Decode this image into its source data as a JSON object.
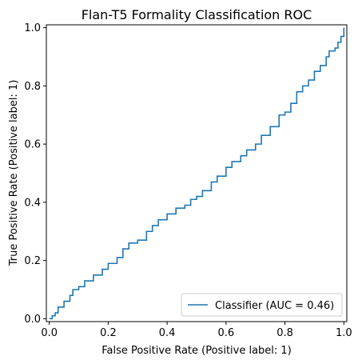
{
  "chart_data": {
    "type": "line",
    "title": "Flan-T5 Formality Classification ROC",
    "xlabel": "False Positive Rate (Positive label: 1)",
    "ylabel": "True Positive Rate (Positive label: 1)",
    "xlim": [
      -0.01,
      1.01
    ],
    "ylim": [
      -0.01,
      1.01
    ],
    "xticks": [
      0.0,
      0.2,
      0.4,
      0.6,
      0.8,
      1.0
    ],
    "yticks": [
      0.0,
      0.2,
      0.4,
      0.6,
      0.8,
      1.0
    ],
    "xtick_labels": [
      "0.0",
      "0.2",
      "0.4",
      "0.6",
      "0.8",
      "1.0"
    ],
    "ytick_labels": [
      "0.0",
      "0.2",
      "0.4",
      "0.6",
      "0.8",
      "1.0"
    ],
    "grid": false,
    "legend_position": "lower-right",
    "series": [
      {
        "name": "Classifier (AUC = 0.46)",
        "color": "#1f77b4",
        "x": [
          0.0,
          0.01,
          0.02,
          0.03,
          0.05,
          0.07,
          0.08,
          0.1,
          0.12,
          0.15,
          0.18,
          0.2,
          0.23,
          0.25,
          0.27,
          0.3,
          0.33,
          0.35,
          0.37,
          0.4,
          0.43,
          0.46,
          0.48,
          0.5,
          0.52,
          0.55,
          0.57,
          0.6,
          0.62,
          0.65,
          0.67,
          0.7,
          0.72,
          0.75,
          0.78,
          0.8,
          0.82,
          0.84,
          0.86,
          0.88,
          0.9,
          0.92,
          0.94,
          0.95,
          0.97,
          0.98,
          0.99,
          1.0
        ],
        "y": [
          0.0,
          0.01,
          0.02,
          0.04,
          0.06,
          0.08,
          0.1,
          0.11,
          0.13,
          0.15,
          0.17,
          0.19,
          0.21,
          0.24,
          0.26,
          0.27,
          0.3,
          0.32,
          0.34,
          0.36,
          0.38,
          0.39,
          0.41,
          0.42,
          0.44,
          0.47,
          0.49,
          0.52,
          0.54,
          0.56,
          0.58,
          0.6,
          0.63,
          0.66,
          0.7,
          0.71,
          0.74,
          0.78,
          0.8,
          0.82,
          0.85,
          0.87,
          0.9,
          0.92,
          0.93,
          0.95,
          0.97,
          1.0
        ]
      }
    ]
  }
}
